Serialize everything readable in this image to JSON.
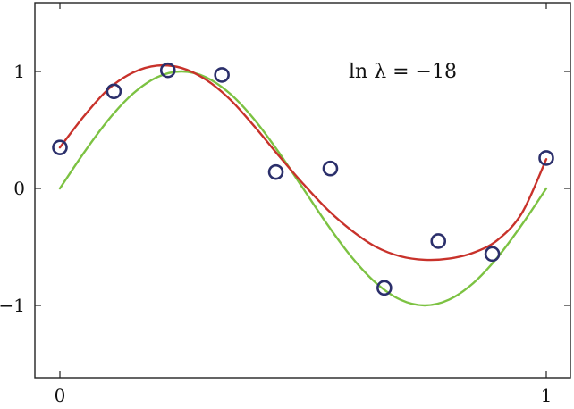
{
  "chart_data": {
    "type": "scatter",
    "title": "",
    "xlabel": "",
    "ylabel": "",
    "xlim": [
      -0.05,
      1.05
    ],
    "ylim": [
      -1.6,
      1.6
    ],
    "x_ticks": [
      {
        "value": 0,
        "label": "0"
      },
      {
        "value": 1,
        "label": "1"
      }
    ],
    "y_ticks": [
      {
        "value": 1,
        "label": "1"
      },
      {
        "value": 0,
        "label": "0"
      },
      {
        "value": -1,
        "label": "−1"
      }
    ],
    "annotation": "ln λ = −18",
    "points": {
      "x": [
        0.0,
        0.111,
        0.222,
        0.333,
        0.444,
        0.556,
        0.667,
        0.778,
        0.889,
        1.0
      ],
      "y": [
        0.35,
        0.83,
        1.01,
        0.97,
        0.14,
        0.17,
        -0.85,
        -0.45,
        -0.56,
        0.26
      ],
      "color": "#2b2f6b"
    },
    "series": [
      {
        "type": "line",
        "color": "#7cc242",
        "x": [
          0.0,
          0.05,
          0.1,
          0.15,
          0.2,
          0.25,
          0.3,
          0.35,
          0.4,
          0.45,
          0.5,
          0.55,
          0.6,
          0.65,
          0.7,
          0.75,
          0.8,
          0.85,
          0.9,
          0.95,
          1.0
        ],
        "y": [
          0.0,
          0.309,
          0.588,
          0.809,
          0.951,
          1.0,
          0.951,
          0.809,
          0.588,
          0.309,
          0.0,
          -0.309,
          -0.588,
          -0.809,
          -0.951,
          -1.0,
          -0.951,
          -0.809,
          -0.588,
          -0.309,
          0.0
        ]
      },
      {
        "type": "line",
        "color": "#c8322b",
        "x": [
          0.0,
          0.05,
          0.1,
          0.15,
          0.2,
          0.25,
          0.3,
          0.35,
          0.4,
          0.45,
          0.5,
          0.55,
          0.6,
          0.65,
          0.7,
          0.75,
          0.8,
          0.85,
          0.9,
          0.95,
          1.0
        ],
        "y": [
          0.35,
          0.62,
          0.85,
          0.99,
          1.05,
          1.03,
          0.93,
          0.76,
          0.53,
          0.28,
          0.04,
          -0.18,
          -0.36,
          -0.5,
          -0.58,
          -0.61,
          -0.6,
          -0.55,
          -0.44,
          -0.21,
          0.25
        ]
      }
    ]
  }
}
